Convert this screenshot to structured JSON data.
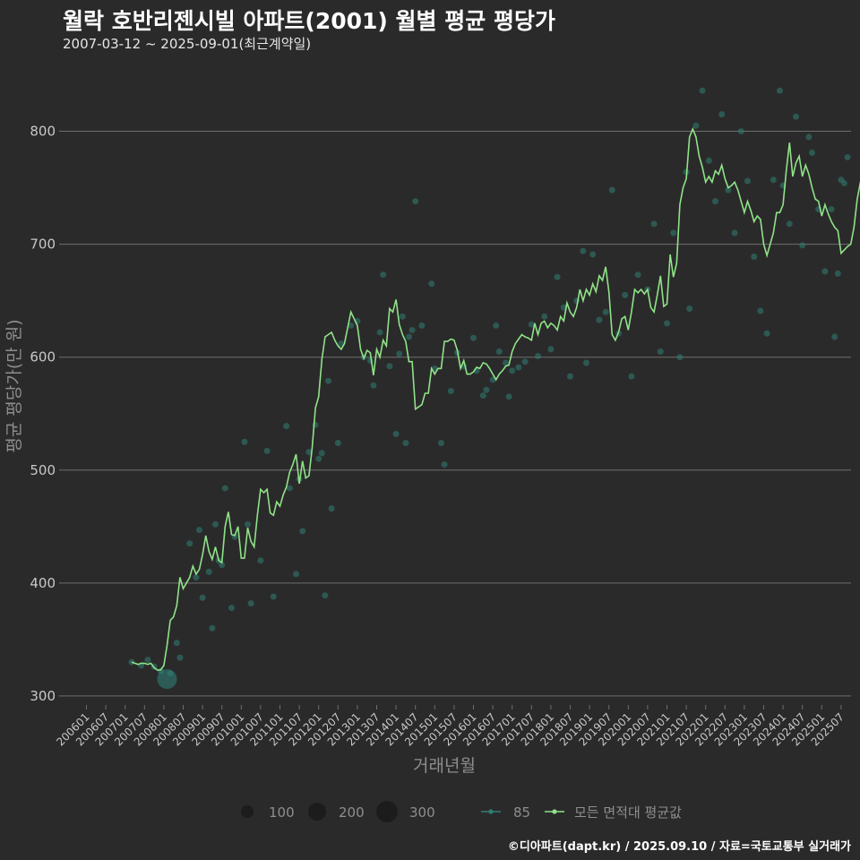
{
  "header": {
    "title": "월락 호반리젠시빌 아파트(2001) 월별 평균 평당가",
    "subtitle": "2007-03-12 ~ 2025-09-01(최근계약일)"
  },
  "caption": "©디아파트(dapt.kr) / 2025.09.10 / 자료=국토교통부 실거래가",
  "colors": {
    "background": "#2b2a2b",
    "grid": "#6e6e6e",
    "avg_line": "#8fe388",
    "points": "#2f7f74",
    "legend_size": "#1c1c1c"
  },
  "chart_data": {
    "type": "line",
    "xlabel": "거래년월",
    "ylabel": "평균 평당가(만 원)",
    "ylim": [
      292,
      852
    ],
    "yticks": [
      300,
      400,
      500,
      600,
      700,
      800
    ],
    "grid": true,
    "xticks": [
      "200601",
      "200607",
      "200701",
      "200707",
      "200801",
      "200807",
      "200901",
      "200907",
      "201001",
      "201007",
      "201101",
      "201107",
      "201201",
      "201207",
      "201301",
      "201307",
      "201401",
      "201407",
      "201501",
      "201507",
      "201601",
      "201607",
      "201701",
      "201707",
      "201801",
      "201807",
      "201901",
      "201907",
      "202001",
      "202007",
      "202101",
      "202107",
      "202201",
      "202207",
      "202301",
      "202307",
      "202401",
      "202407",
      "202501",
      "202507"
    ],
    "legend": {
      "size_title": "",
      "sizes": [
        {
          "label": "100",
          "value": 100
        },
        {
          "label": "200",
          "value": 200
        },
        {
          "label": "300",
          "value": 300
        }
      ],
      "series": [
        {
          "label": "85",
          "kind": "points"
        },
        {
          "label": "모든 면적대 평균값",
          "kind": "line"
        }
      ]
    },
    "series": [
      {
        "name": "모든 면적대 평균값",
        "x_start": "2007-03",
        "values": [
          330,
          329,
          328,
          329,
          329,
          328,
          329,
          325,
          323,
          323,
          327,
          345,
          367,
          370,
          380,
          405,
          395,
          400,
          405,
          415,
          408,
          412,
          425,
          442,
          428,
          421,
          432,
          420,
          418,
          450,
          463,
          443,
          442,
          450,
          422,
          422,
          449,
          437,
          432,
          460,
          483,
          480,
          483,
          462,
          460,
          472,
          468,
          478,
          485,
          498,
          505,
          514,
          488,
          508,
          493,
          495,
          520,
          555,
          565,
          598,
          618,
          620,
          622,
          615,
          610,
          607,
          612,
          626,
          640,
          634,
          628,
          607,
          599,
          606,
          604,
          584,
          607,
          600,
          615,
          610,
          643,
          640,
          651,
          629,
          620,
          614,
          596,
          596,
          554,
          556,
          558,
          568,
          568,
          590,
          585,
          590,
          590,
          614,
          614,
          616,
          615,
          606,
          590,
          597,
          585,
          585,
          587,
          591,
          590,
          595,
          594,
          590,
          585,
          580,
          585,
          588,
          592,
          593,
          605,
          612,
          616,
          620,
          618,
          617,
          615,
          630,
          620,
          630,
          632,
          626,
          630,
          628,
          624,
          636,
          632,
          648,
          640,
          636,
          644,
          660,
          650,
          660,
          655,
          665,
          658,
          672,
          668,
          680,
          658,
          620,
          615,
          622,
          634,
          636,
          624,
          640,
          660,
          657,
          660,
          656,
          660,
          644,
          640,
          655,
          672,
          645,
          647,
          691,
          671,
          683,
          735,
          750,
          758,
          795,
          802,
          795,
          778,
          768,
          755,
          760,
          755,
          765,
          762,
          770,
          758,
          750,
          752,
          755,
          748,
          738,
          728,
          738,
          730,
          720,
          725,
          722,
          700,
          690,
          700,
          710,
          728,
          728,
          735,
          765,
          790,
          760,
          772,
          778,
          760,
          770,
          762,
          750,
          740,
          738,
          725,
          735,
          727,
          720,
          715,
          712,
          692,
          695,
          698,
          700,
          715,
          740,
          755,
          760
        ]
      },
      {
        "name": "85",
        "kind": "points",
        "points": [
          [
            "2007-03",
            330,
            30
          ],
          [
            "2007-06",
            327,
            30
          ],
          [
            "2007-08",
            332,
            30
          ],
          [
            "2007-10",
            326,
            30
          ],
          [
            "2007-12",
            322,
            30
          ],
          [
            "2008-02",
            315,
            300
          ],
          [
            "2008-03",
            320,
            30
          ],
          [
            "2008-05",
            347,
            30
          ],
          [
            "2008-06",
            334,
            30
          ],
          [
            "2008-09",
            435,
            30
          ],
          [
            "2008-11",
            405,
            30
          ],
          [
            "2008-12",
            447,
            30
          ],
          [
            "2009-01",
            387,
            30
          ],
          [
            "2009-03",
            410,
            30
          ],
          [
            "2009-04",
            360,
            30
          ],
          [
            "2009-05",
            452,
            30
          ],
          [
            "2009-06",
            420,
            30
          ],
          [
            "2009-07",
            416,
            30
          ],
          [
            "2009-08",
            484,
            30
          ],
          [
            "2009-10",
            378,
            30
          ],
          [
            "2009-11",
            441,
            30
          ],
          [
            "2010-02",
            525,
            30
          ],
          [
            "2010-03",
            452,
            30
          ],
          [
            "2010-04",
            382,
            30
          ],
          [
            "2010-07",
            420,
            30
          ],
          [
            "2010-09",
            517,
            30
          ],
          [
            "2010-11",
            388,
            30
          ],
          [
            "2011-03",
            539,
            30
          ],
          [
            "2011-04",
            484,
            30
          ],
          [
            "2011-06",
            408,
            30
          ],
          [
            "2011-07",
            492,
            30
          ],
          [
            "2011-08",
            446,
            30
          ],
          [
            "2011-10",
            516,
            30
          ],
          [
            "2011-12",
            540,
            30
          ],
          [
            "2012-01",
            510,
            30
          ],
          [
            "2012-02",
            515,
            30
          ],
          [
            "2012-03",
            389,
            30
          ],
          [
            "2012-04",
            579,
            30
          ],
          [
            "2012-05",
            466,
            30
          ],
          [
            "2012-07",
            524,
            30
          ],
          [
            "2012-08",
            612,
            30
          ],
          [
            "2012-11",
            628,
            30
          ],
          [
            "2013-01",
            632,
            30
          ],
          [
            "2013-03",
            600,
            30
          ],
          [
            "2013-05",
            597,
            30
          ],
          [
            "2013-06",
            575,
            30
          ],
          [
            "2013-08",
            622,
            30
          ],
          [
            "2013-09",
            673,
            30
          ],
          [
            "2013-11",
            592,
            30
          ],
          [
            "2014-01",
            532,
            30
          ],
          [
            "2014-02",
            603,
            30
          ],
          [
            "2014-03",
            636,
            30
          ],
          [
            "2014-04",
            524,
            30
          ],
          [
            "2014-05",
            618,
            30
          ],
          [
            "2014-06",
            624,
            30
          ],
          [
            "2014-07",
            738,
            30
          ],
          [
            "2014-09",
            628,
            30
          ],
          [
            "2014-12",
            665,
            30
          ],
          [
            "2015-01",
            590,
            30
          ],
          [
            "2015-03",
            524,
            30
          ],
          [
            "2015-04",
            505,
            30
          ],
          [
            "2015-06",
            570,
            30
          ],
          [
            "2015-08",
            604,
            30
          ],
          [
            "2015-10",
            592,
            30
          ],
          [
            "2016-01",
            617,
            30
          ],
          [
            "2016-02",
            588,
            30
          ],
          [
            "2016-04",
            566,
            30
          ],
          [
            "2016-05",
            571,
            30
          ],
          [
            "2016-07",
            580,
            30
          ],
          [
            "2016-08",
            628,
            30
          ],
          [
            "2016-09",
            605,
            30
          ],
          [
            "2016-11",
            595,
            30
          ],
          [
            "2016-12",
            565,
            30
          ],
          [
            "2017-01",
            588,
            30
          ],
          [
            "2017-03",
            591,
            30
          ],
          [
            "2017-05",
            596,
            30
          ],
          [
            "2017-07",
            629,
            30
          ],
          [
            "2017-09",
            601,
            30
          ],
          [
            "2017-11",
            636,
            30
          ],
          [
            "2018-01",
            607,
            30
          ],
          [
            "2018-03",
            671,
            30
          ],
          [
            "2018-05",
            644,
            30
          ],
          [
            "2018-07",
            583,
            30
          ],
          [
            "2018-09",
            650,
            30
          ],
          [
            "2018-11",
            694,
            30
          ],
          [
            "2018-12",
            595,
            30
          ],
          [
            "2019-02",
            691,
            30
          ],
          [
            "2019-04",
            633,
            30
          ],
          [
            "2019-06",
            640,
            30
          ],
          [
            "2019-08",
            748,
            30
          ],
          [
            "2019-10",
            621,
            30
          ],
          [
            "2019-12",
            655,
            30
          ],
          [
            "2020-02",
            583,
            30
          ],
          [
            "2020-04",
            673,
            30
          ],
          [
            "2020-07",
            660,
            30
          ],
          [
            "2020-09",
            718,
            30
          ],
          [
            "2020-11",
            605,
            30
          ],
          [
            "2021-01",
            630,
            30
          ],
          [
            "2021-03",
            710,
            30
          ],
          [
            "2021-05",
            600,
            30
          ],
          [
            "2021-07",
            764,
            30
          ],
          [
            "2021-08",
            643,
            30
          ],
          [
            "2021-10",
            805,
            30
          ],
          [
            "2021-12",
            836,
            30
          ],
          [
            "2022-02",
            774,
            30
          ],
          [
            "2022-04",
            738,
            30
          ],
          [
            "2022-06",
            815,
            30
          ],
          [
            "2022-08",
            748,
            30
          ],
          [
            "2022-10",
            710,
            30
          ],
          [
            "2022-12",
            800,
            30
          ],
          [
            "2023-02",
            756,
            30
          ],
          [
            "2023-04",
            689,
            30
          ],
          [
            "2023-06",
            641,
            30
          ],
          [
            "2023-08",
            621,
            30
          ],
          [
            "2023-10",
            757,
            30
          ],
          [
            "2023-12",
            836,
            30
          ],
          [
            "2024-01",
            752,
            30
          ],
          [
            "2024-03",
            718,
            30
          ],
          [
            "2024-05",
            813,
            30
          ],
          [
            "2024-07",
            699,
            30
          ],
          [
            "2024-09",
            795,
            30
          ],
          [
            "2024-10",
            781,
            30
          ],
          [
            "2024-12",
            731,
            30
          ],
          [
            "2025-02",
            676,
            30
          ],
          [
            "2025-04",
            731,
            30
          ],
          [
            "2025-05",
            618,
            30
          ],
          [
            "2025-06",
            674,
            30
          ],
          [
            "2025-07",
            757,
            30
          ],
          [
            "2025-08",
            754,
            30
          ],
          [
            "2025-09",
            777,
            30
          ]
        ]
      }
    ]
  }
}
